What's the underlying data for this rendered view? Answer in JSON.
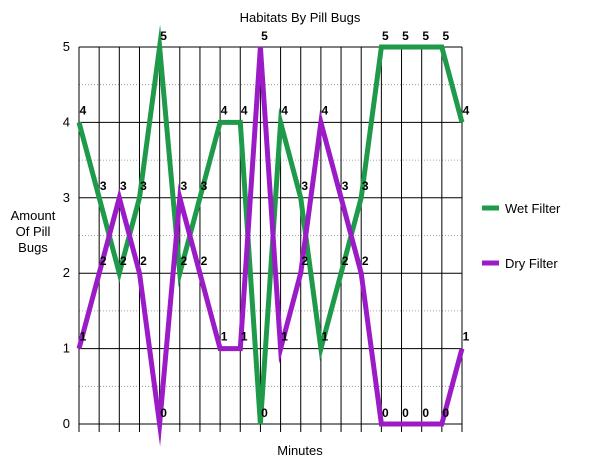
{
  "chart_data": {
    "type": "line",
    "title": "Habitats By Pill Bugs",
    "xlabel": "Minutes",
    "ylabel": "Amount Of Pill Bugs",
    "ylabel_lines": [
      "Amount",
      "Of Pill",
      "Bugs"
    ],
    "ylim": [
      0,
      5
    ],
    "yticks": [
      "0",
      "1",
      "2",
      "3",
      "4",
      "5"
    ],
    "x_count": 20,
    "grid": true,
    "legend_position": "right",
    "series": [
      {
        "name": "Wet Filter",
        "color": "#1e9a4a",
        "values": [
          4,
          3,
          2,
          3,
          5,
          2,
          3,
          4,
          4,
          0,
          4,
          3,
          1,
          2,
          3,
          5,
          5,
          5,
          5,
          4
        ],
        "labels": [
          "4",
          "3",
          "2",
          "3",
          "5",
          "2",
          "3",
          "4",
          "4",
          "0",
          "4",
          "3",
          "1",
          "2",
          "3",
          "5",
          "5",
          "5",
          "5",
          "4"
        ]
      },
      {
        "name": "Dry Filter",
        "color": "#9b1bc6",
        "values": [
          1,
          2,
          3,
          2,
          0,
          3,
          2,
          1,
          1,
          5,
          1,
          2,
          4,
          3,
          2,
          0,
          0,
          0,
          0,
          1
        ],
        "labels": [
          "1",
          "2",
          "3",
          "2",
          "0",
          "3",
          "2",
          "1",
          "1",
          "5",
          "1",
          "2",
          "4",
          "3",
          "2",
          "0",
          "0",
          "0",
          "0",
          "1"
        ]
      }
    ]
  }
}
